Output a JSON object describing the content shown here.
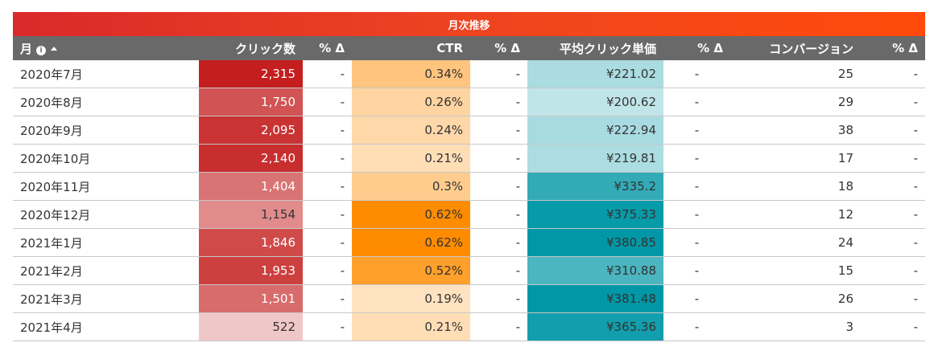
{
  "banner_title": "月次推移",
  "columns": {
    "month": "月",
    "clicks": "クリック数",
    "clicks_delta": "% Δ",
    "ctr": "CTR",
    "ctr_delta": "% Δ",
    "cpc": "平均クリック単価",
    "cpc_delta": "% Δ",
    "conv": "コンバージョン",
    "conv_delta": "% Δ"
  },
  "icons": {
    "info": "info-icon",
    "sort": "sort-ascending-icon"
  },
  "colors": {
    "clicks": "#c41e1e",
    "ctr": "#ff8c00",
    "cpc": "#0197a6"
  },
  "ranges": {
    "clicks": [
      522,
      2315
    ],
    "ctr": [
      0.19,
      0.62
    ],
    "cpc": [
      200.62,
      381.48
    ]
  },
  "rows": [
    {
      "month": "2020年7月",
      "clicks": "2,315",
      "clicks_val": 2315,
      "clicks_delta": "-",
      "ctr": "0.34%",
      "ctr_val": 0.34,
      "ctr_delta": "-",
      "cpc": "¥221.02",
      "cpc_val": 221.02,
      "cpc_delta": "-",
      "conv": "25",
      "conv_delta": "-"
    },
    {
      "month": "2020年8月",
      "clicks": "1,750",
      "clicks_val": 1750,
      "clicks_delta": "-",
      "ctr": "0.26%",
      "ctr_val": 0.26,
      "ctr_delta": "-",
      "cpc": "¥200.62",
      "cpc_val": 200.62,
      "cpc_delta": "-",
      "conv": "29",
      "conv_delta": "-"
    },
    {
      "month": "2020年9月",
      "clicks": "2,095",
      "clicks_val": 2095,
      "clicks_delta": "-",
      "ctr": "0.24%",
      "ctr_val": 0.24,
      "ctr_delta": "-",
      "cpc": "¥222.94",
      "cpc_val": 222.94,
      "cpc_delta": "-",
      "conv": "38",
      "conv_delta": "-"
    },
    {
      "month": "2020年10月",
      "clicks": "2,140",
      "clicks_val": 2140,
      "clicks_delta": "-",
      "ctr": "0.21%",
      "ctr_val": 0.21,
      "ctr_delta": "-",
      "cpc": "¥219.81",
      "cpc_val": 219.81,
      "cpc_delta": "-",
      "conv": "17",
      "conv_delta": "-"
    },
    {
      "month": "2020年11月",
      "clicks": "1,404",
      "clicks_val": 1404,
      "clicks_delta": "-",
      "ctr": "0.3%",
      "ctr_val": 0.3,
      "ctr_delta": "-",
      "cpc": "¥335.2",
      "cpc_val": 335.2,
      "cpc_delta": "-",
      "conv": "18",
      "conv_delta": "-"
    },
    {
      "month": "2020年12月",
      "clicks": "1,154",
      "clicks_val": 1154,
      "clicks_delta": "-",
      "ctr": "0.62%",
      "ctr_val": 0.62,
      "ctr_delta": "-",
      "cpc": "¥375.33",
      "cpc_val": 375.33,
      "cpc_delta": "-",
      "conv": "12",
      "conv_delta": "-"
    },
    {
      "month": "2021年1月",
      "clicks": "1,846",
      "clicks_val": 1846,
      "clicks_delta": "-",
      "ctr": "0.62%",
      "ctr_val": 0.62,
      "ctr_delta": "-",
      "cpc": "¥380.85",
      "cpc_val": 380.85,
      "cpc_delta": "-",
      "conv": "24",
      "conv_delta": "-"
    },
    {
      "month": "2021年2月",
      "clicks": "1,953",
      "clicks_val": 1953,
      "clicks_delta": "-",
      "ctr": "0.52%",
      "ctr_val": 0.52,
      "ctr_delta": "-",
      "cpc": "¥310.88",
      "cpc_val": 310.88,
      "cpc_delta": "-",
      "conv": "15",
      "conv_delta": "-"
    },
    {
      "month": "2021年3月",
      "clicks": "1,501",
      "clicks_val": 1501,
      "clicks_delta": "-",
      "ctr": "0.19%",
      "ctr_val": 0.19,
      "ctr_delta": "-",
      "cpc": "¥381.48",
      "cpc_val": 381.48,
      "cpc_delta": "-",
      "conv": "26",
      "conv_delta": "-"
    },
    {
      "month": "2021年4月",
      "clicks": "522",
      "clicks_val": 522,
      "clicks_delta": "-",
      "ctr": "0.21%",
      "ctr_val": 0.21,
      "ctr_delta": "-",
      "cpc": "¥365.36",
      "cpc_val": 365.36,
      "cpc_delta": "-",
      "conv": "3",
      "conv_delta": "-"
    }
  ]
}
